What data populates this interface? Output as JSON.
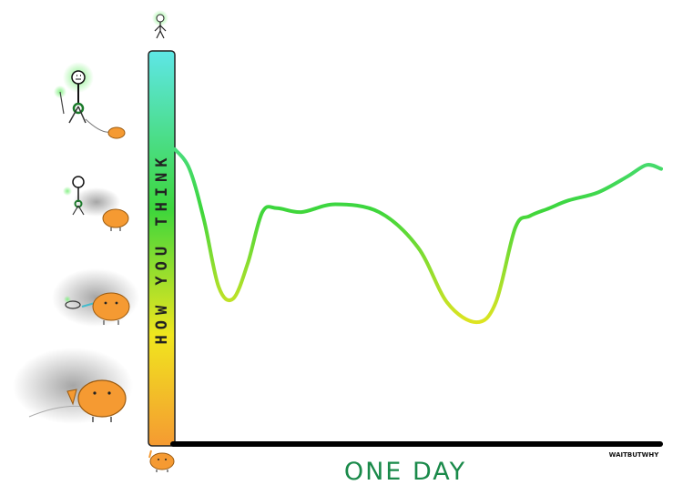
{
  "chart_data": {
    "type": "line",
    "ylabel": "HOW YOU THINK",
    "xlabel": "ONE DAY",
    "credit": "WAITBUTWHY",
    "ylim": [
      0,
      1
    ],
    "xlim": [
      0,
      1
    ],
    "grid": false,
    "legend": "none",
    "colors": {
      "xlabel": "#1a8a4a",
      "gradient_top": "#5ee6e6",
      "gradient_mid": "#3cd63c",
      "gradient_low": "#f0e61e",
      "gradient_bottom": "#f59a32",
      "axis": "#000000"
    },
    "series": [
      {
        "x": [
          0.0,
          0.03,
          0.06,
          0.09,
          0.12,
          0.15,
          0.18,
          0.21,
          0.26,
          0.33,
          0.42,
          0.5,
          0.56,
          0.62,
          0.66,
          0.7,
          0.73,
          0.77,
          0.81,
          0.87,
          0.93,
          0.97,
          1.0
        ],
        "values": [
          0.75,
          0.7,
          0.57,
          0.4,
          0.37,
          0.46,
          0.59,
          0.6,
          0.59,
          0.61,
          0.59,
          0.5,
          0.36,
          0.31,
          0.36,
          0.55,
          0.58,
          0.6,
          0.62,
          0.64,
          0.68,
          0.71,
          0.7
        ]
      }
    ]
  },
  "decorations": {
    "level_icons": [
      "stick-figure-top-icon",
      "stick-figure-walking-monster-icon",
      "stick-figure-smoke-monster-icon",
      "monster-smoke-figure-icon",
      "monster-dominant-smoke-icon"
    ],
    "bottom_icon": "orange-monster-icon"
  }
}
